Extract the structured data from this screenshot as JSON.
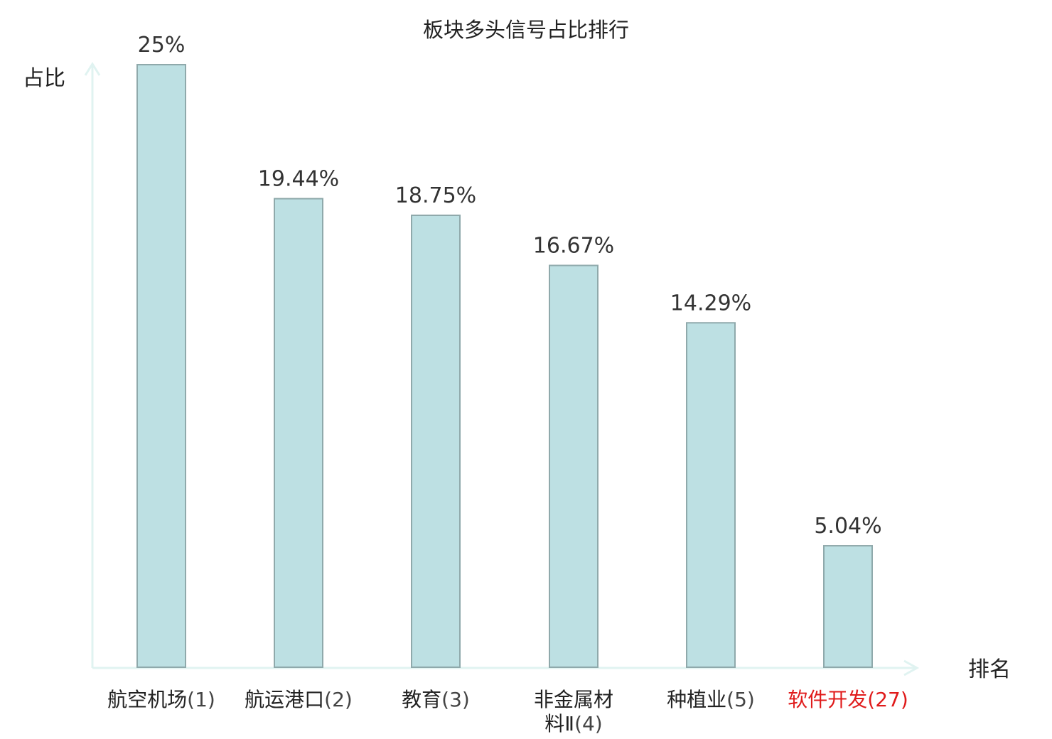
{
  "chart_data": {
    "type": "bar",
    "title": "板块多头信号占比排行",
    "ylabel": "占比",
    "xlabel": "排名",
    "ylim": [
      0,
      25
    ],
    "grid": false,
    "categories": [
      {
        "name": "航空机场",
        "rank": "(1)",
        "highlight": false
      },
      {
        "name": "航运港口",
        "rank": "(2)",
        "highlight": false
      },
      {
        "name": "教育",
        "rank": "(3)",
        "highlight": false
      },
      {
        "name": "非金属材料Ⅱ",
        "rank": "(4)",
        "highlight": false
      },
      {
        "name": "种植业",
        "rank": "(5)",
        "highlight": false
      },
      {
        "name": "软件开发",
        "rank": "(27)",
        "highlight": true
      }
    ],
    "values": [
      25,
      19.44,
      18.75,
      16.67,
      14.29,
      5.04
    ],
    "value_labels": [
      "25%",
      "19.44%",
      "18.75%",
      "16.67%",
      "14.29%",
      "5.04%"
    ],
    "colors": {
      "bar_fill": "#bde0e3",
      "bar_stroke": "#8fa9ab",
      "axis": "#e0f3f1",
      "highlight_text": "#e01b1b"
    }
  }
}
